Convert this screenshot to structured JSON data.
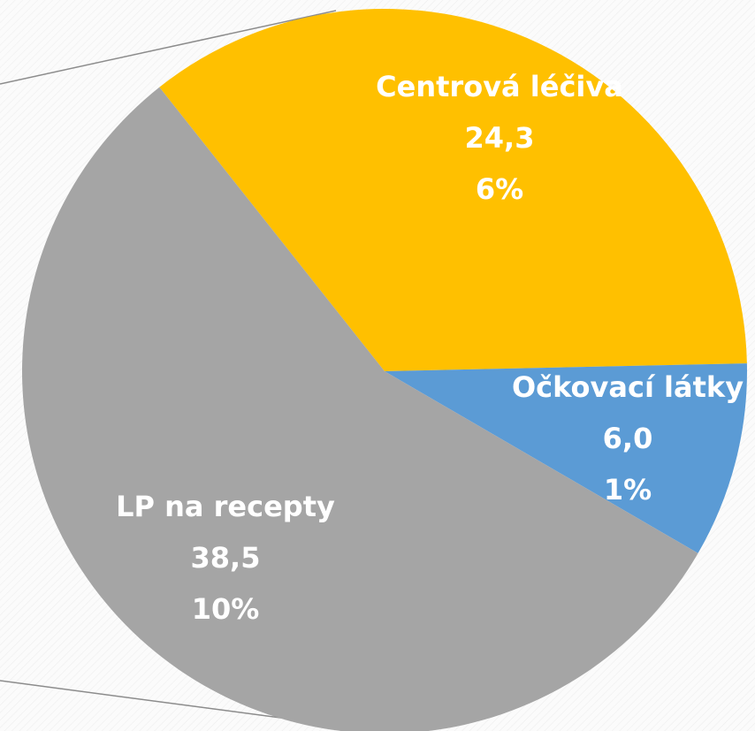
{
  "chart_data": {
    "type": "pie",
    "categories": [
      "Centrová léčiva",
      "Očkovací látky",
      "LP na recepty"
    ],
    "values": [
      24.3,
      6.0,
      38.5
    ],
    "value_labels": [
      "24,3",
      "6,0",
      "38,5"
    ],
    "percents": [
      6,
      1,
      10
    ],
    "percent_labels": [
      "6%",
      "1%",
      "10%"
    ],
    "colors": [
      "#FFC000",
      "#5B9BD5",
      "#A5A5A5"
    ]
  }
}
